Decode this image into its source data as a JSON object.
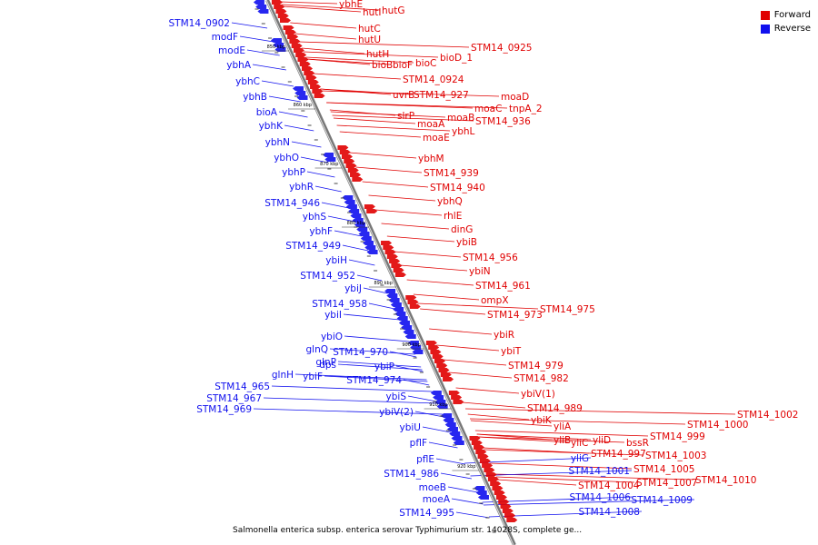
{
  "legend": {
    "forward_label": "Forward",
    "reverse_label": "Reverse",
    "forward_color": "#e00000",
    "reverse_color": "#1010ee"
  },
  "caption": "Salmonella enterica subsp. enterica serovar Typhimurium str. 14028S, complete ge...",
  "ticks": [
    "850 kbp",
    "860 kbp",
    "870 kbp",
    "880 kbp",
    "890 kbp",
    "900 kbp",
    "910 kbp",
    "920 kbp"
  ],
  "forward_genes": [
    "ybhE",
    "hutI",
    "hutG",
    "hutC",
    "hutU",
    "hutH",
    "bioB",
    "bioF",
    "bioC",
    "bioD_1",
    "STM14_0925",
    "STM14_0924",
    "uvrB",
    "STM14_927",
    "moaD",
    "slrP",
    "moaC",
    "tnpA_2",
    "moaA",
    "moaB",
    "STM14_936",
    "ybhL",
    "moaE",
    "ybhM",
    "STM14_939",
    "STM14_940",
    "ybhQ",
    "rhlE",
    "dinG",
    "ybiB",
    "STM14_956",
    "ybiN",
    "STM14_961",
    "ompX",
    "STM14_973",
    "STM14_975",
    "ybiR",
    "ybiT",
    "STM14_979",
    "STM14_982",
    "ybiV(1)",
    "STM14_989",
    "ybiK",
    "yliA",
    "yliB",
    "yliC",
    "yliD",
    "bssR",
    "STM14_1002",
    "STM14_1000",
    "STM14_999",
    "STM14_997",
    "STM14_1003",
    "STM14_1005",
    "STM14_1007",
    "STM14_1010",
    "STM14_1004"
  ],
  "reverse_genes": [
    "STM14_0902",
    "modF",
    "modE",
    "ybhA",
    "ybhC",
    "ybhB",
    "bioA",
    "ybhK",
    "ybhN",
    "ybhO",
    "ybhP",
    "ybhR",
    "STM14_946",
    "ybhS",
    "ybhF",
    "STM14_949",
    "ybiH",
    "STM14_952",
    "ybiJ",
    "STM14_958",
    "ybiI",
    "ybiO",
    "glnQ",
    "STM14_970",
    "glnP",
    "dps",
    "glnH",
    "ybiF",
    "STM14_965",
    "STM14_967",
    "STM14_969",
    "ybiP",
    "STM14_974",
    "ybiS",
    "ybiV(2)",
    "ybiU",
    "pflF",
    "pflE",
    "STM14_986",
    "moeB",
    "moeA",
    "STM14_995",
    "yliG",
    "STM14_1001",
    "STM14_1006",
    "STM14_1009",
    "STM14_1008"
  ]
}
